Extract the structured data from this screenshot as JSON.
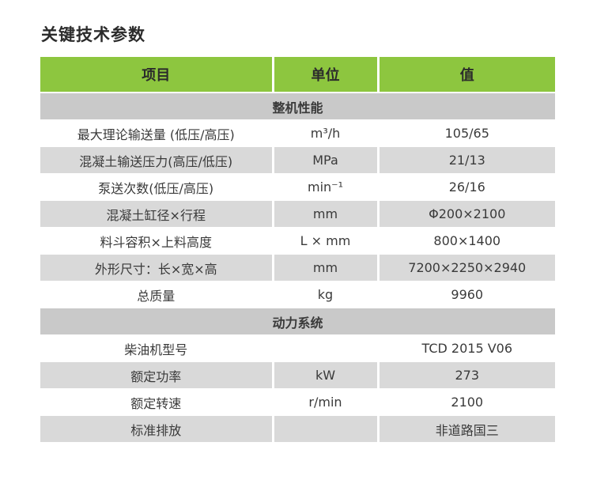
{
  "title": "关键技术参数",
  "colors": {
    "header_green": "#8dc63f",
    "row_gray": "#d9d9d9",
    "section_gray": "#c9c9c9"
  },
  "table": {
    "headers": [
      "项目",
      "单位",
      "值"
    ],
    "sections": [
      {
        "name": "整机性能",
        "rows": [
          [
            "最大理论输送量 (低压/高压)",
            "m³/h",
            "105/65"
          ],
          [
            "混凝土输送压力(高压/低压)",
            "MPa",
            "21/13"
          ],
          [
            "泵送次数(低压/高压)",
            "min⁻¹",
            "26/16"
          ],
          [
            "混凝土缸径×行程",
            "mm",
            "Φ200×2100"
          ],
          [
            "料斗容积×上料高度",
            "L × mm",
            "800×1400"
          ],
          [
            "外形尺寸：长×宽×高",
            "mm",
            "7200×2250×2940"
          ],
          [
            "总质量",
            "kg",
            "9960"
          ]
        ]
      },
      {
        "name": "动力系统",
        "rows": [
          [
            "柴油机型号",
            "",
            "TCD 2015 V06"
          ],
          [
            "额定功率",
            "kW",
            "273"
          ],
          [
            "额定转速",
            "r/min",
            "2100"
          ],
          [
            "标准排放",
            "",
            "非道路国三"
          ]
        ]
      }
    ]
  }
}
